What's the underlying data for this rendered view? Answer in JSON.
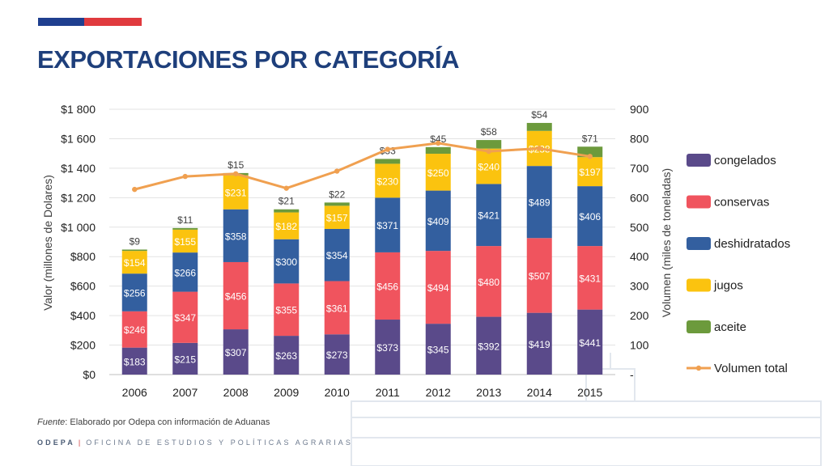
{
  "header": {
    "title": "EXPORTACIONES POR CATEGORÍA"
  },
  "source": {
    "label": "Fuente",
    "text": ": Elaborado por Odepa con información de Aduanas"
  },
  "footer": {
    "brand": "ODEPA",
    "separator": "|",
    "text": "OFICINA DE ESTUDIOS Y POLÍTICAS AGRARIAS"
  },
  "chart_data": {
    "type": "bar",
    "stacked": true,
    "categories": [
      "2006",
      "2007",
      "2008",
      "2009",
      "2010",
      "2011",
      "2012",
      "2013",
      "2014",
      "2015"
    ],
    "series": [
      {
        "name": "congelados",
        "color": "#5a4a8a",
        "values": [
          183,
          215,
          307,
          263,
          273,
          373,
          345,
          392,
          419,
          441
        ]
      },
      {
        "name": "conservas",
        "color": "#f0545e",
        "values": [
          246,
          347,
          456,
          355,
          361,
          456,
          494,
          480,
          507,
          431
        ]
      },
      {
        "name": "deshidratados",
        "color": "#335f9f",
        "values": [
          256,
          266,
          358,
          300,
          354,
          371,
          409,
          421,
          489,
          406
        ]
      },
      {
        "name": "jugos",
        "color": "#fbc30f",
        "values": [
          154,
          155,
          231,
          182,
          157,
          230,
          250,
          240,
          238,
          197
        ]
      },
      {
        "name": "aceite",
        "color": "#6c9a3c",
        "values": [
          9,
          11,
          15,
          21,
          22,
          33,
          45,
          58,
          54,
          71
        ]
      }
    ],
    "line": {
      "name": "Volumen total",
      "color": "#f0a050",
      "values": [
        628,
        672,
        681,
        632,
        690,
        764,
        785,
        757,
        767,
        740
      ]
    },
    "ylabel": "Valor (millones de Dolares)",
    "y2label": "Volumen (miles de toneladas)",
    "ylim": [
      0,
      1800
    ],
    "y2lim": [
      0,
      900
    ],
    "yticks": [
      "$0",
      "$200",
      "$400",
      "$600",
      "$800",
      "$1 000",
      "$1 200",
      "$1 400",
      "$1 600",
      "$1 800"
    ],
    "y2ticks": [
      "-",
      "100",
      "200",
      "300",
      "400",
      "500",
      "600",
      "700",
      "800",
      "900"
    ],
    "data_labels": [
      [
        "$183",
        "$215",
        "$307",
        "$263",
        "$273",
        "$373",
        "$345",
        "$392",
        "$419",
        "$441"
      ],
      [
        "$246",
        "$347",
        "$456",
        "$355",
        "$361",
        "$456",
        "$494",
        "$480",
        "$507",
        "$431"
      ],
      [
        "$256",
        "$266",
        "$358",
        "$300",
        "$354",
        "$371",
        "$409",
        "$421",
        "$489",
        "$406"
      ],
      [
        "$154",
        "$155",
        "$231",
        "$182",
        "$157",
        "$230",
        "$250",
        "$240",
        "$238",
        "$197"
      ],
      [
        "$9",
        "$11",
        "$15",
        "$21",
        "$22",
        "$33",
        "$45",
        "$58",
        "$54",
        "$71"
      ]
    ],
    "grid": true,
    "legend_position": "right"
  }
}
